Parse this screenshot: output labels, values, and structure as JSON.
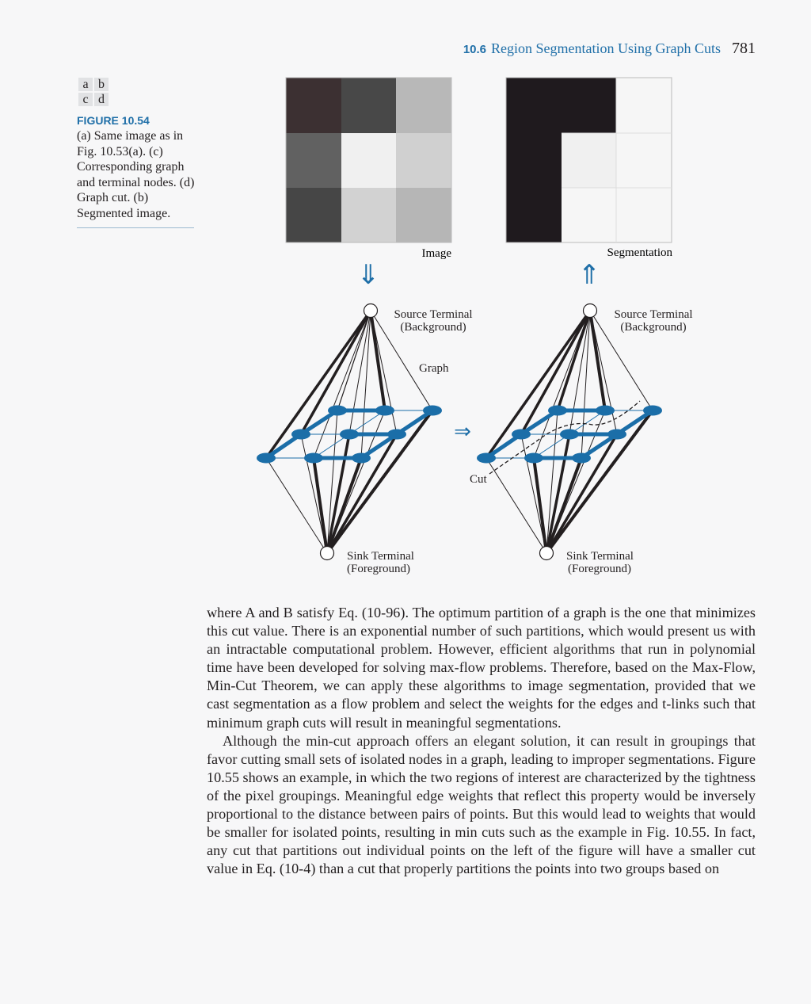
{
  "header": {
    "section_number": "10.6",
    "section_title": "Region Segmentation Using Graph Cuts",
    "page_number": "781"
  },
  "figure_key": [
    "a",
    "b",
    "c",
    "d"
  ],
  "caption": {
    "label": "FIGURE 10.54",
    "text": "(a) Same image as in Fig. 10.53(a). (c) Corresponding graph and terminal nodes. (d) Graph cut. (b) Segmented image."
  },
  "figure": {
    "image_label": "Image",
    "segmentation_label": "Segmentation",
    "source_label_1": "Source Terminal",
    "source_label_2": "(Background)",
    "sink_label_1": "Sink Terminal",
    "sink_label_2": "(Foreground)",
    "graph_label": "Graph",
    "cut_label": "Cut",
    "down_arrow": "⇓",
    "up_arrow": "⇑",
    "right_arrow": "⇒",
    "image_gray": [
      "#3c3032",
      "#484848",
      "#b8b8b8",
      "#616161",
      "#f0f0f0",
      "#d0d0d0",
      "#464646",
      "#d2d2d2",
      "#b6b6b6"
    ],
    "segmentation_gray": [
      "#1f1a1e",
      "#1f1a1e",
      "#f6f6f6",
      "#1f1a1e",
      "#f0f0f0",
      "#f6f6f6",
      "#1f1a1e",
      "#f6f6f6",
      "#f6f6f6"
    ],
    "node_color": "#1b6ea8"
  },
  "body": {
    "p1": "where A and B satisfy Eq. (10-96). The optimum partition of a graph is the one that minimizes this cut value. There is an exponential number of such partitions, which would present us with an intractable computational problem. However, efficient algorithms that run in polynomial time have been developed for solving max-flow problems. Therefore, based on the Max-Flow, Min-Cut Theorem, we can apply these algorithms to image segmentation, provided that we cast segmentation as a flow problem and select the weights for the edges and t-links such that minimum graph cuts will result in meaningful segmentations.",
    "p2": "Although the min-cut approach offers an elegant solution, it can result in groupings that favor cutting small sets of isolated nodes in a graph, leading to improper segmentations. Figure 10.55 shows an example, in which the two regions of interest are characterized by the tightness of the pixel groupings. Meaningful edge weights that reflect this property would be inversely proportional to the distance between pairs of points. But this would lead to weights that would be smaller for isolated points, resulting in min cuts such as the example in Fig. 10.55. In fact, any cut that partitions out individual points on the left of the figure will have a smaller cut value in Eq. (10-4) than a cut that properly partitions the points into two groups based on"
  }
}
